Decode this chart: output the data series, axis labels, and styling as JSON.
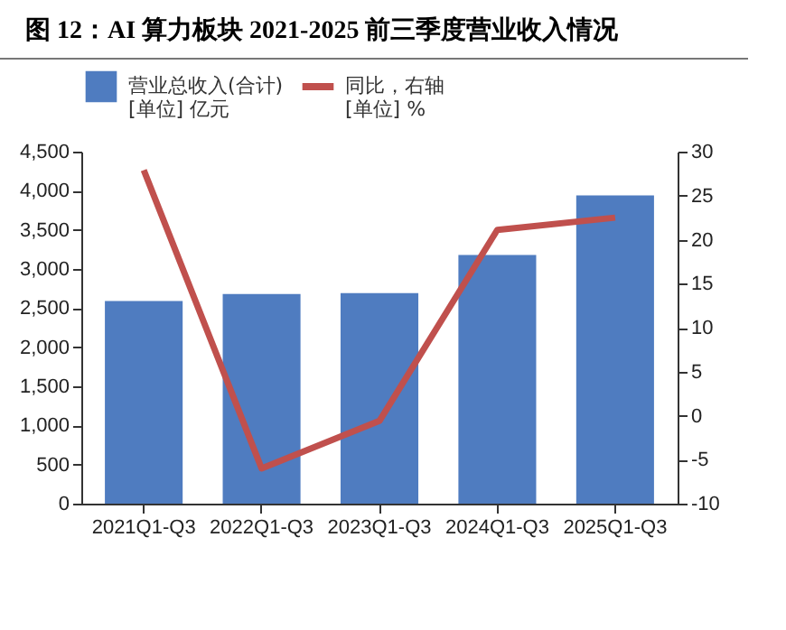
{
  "chart_data": {
    "type": "bar",
    "title": "图 12：AI 算力板块 2021-2025 前三季度营业收入情况",
    "categories": [
      "2021Q1-Q3",
      "2022Q1-Q3",
      "2023Q1-Q3",
      "2024Q1-Q3",
      "2025Q1-Q3"
    ],
    "series": [
      {
        "name": "营业总收入(合计)",
        "color": "#4f7cc0",
        "values": [
          2590,
          2680,
          2690,
          3180,
          3940
        ]
      },
      {
        "name": "同比，右轴",
        "type": "line",
        "axis": "y2",
        "color": "#c0504d",
        "values": [
          27.9,
          -6.0,
          -0.6,
          21.1,
          22.5
        ]
      }
    ],
    "annotations": [
      "[单位] 亿元",
      "[单位] %"
    ],
    "ylim": [
      0,
      4500
    ],
    "yticks": [
      {
        "value": 0,
        "label": "0"
      },
      {
        "value": 500,
        "label": "500"
      },
      {
        "value": 1000,
        "label": "1,000"
      },
      {
        "value": 1500,
        "label": "1,500"
      },
      {
        "value": 2000,
        "label": "2,000"
      },
      {
        "value": 2500,
        "label": "2,500"
      },
      {
        "value": 3000,
        "label": "3,000"
      },
      {
        "value": 3500,
        "label": "3,500"
      },
      {
        "value": 4000,
        "label": "4,000"
      },
      {
        "value": 4500,
        "label": "4,500"
      }
    ],
    "y2lim": [
      -10,
      30
    ],
    "y2ticks": [
      -10,
      -5,
      0,
      5,
      10,
      15,
      20,
      25,
      30
    ],
    "grid": false,
    "legend": "top",
    "marker": "none",
    "line_style": "solid"
  }
}
